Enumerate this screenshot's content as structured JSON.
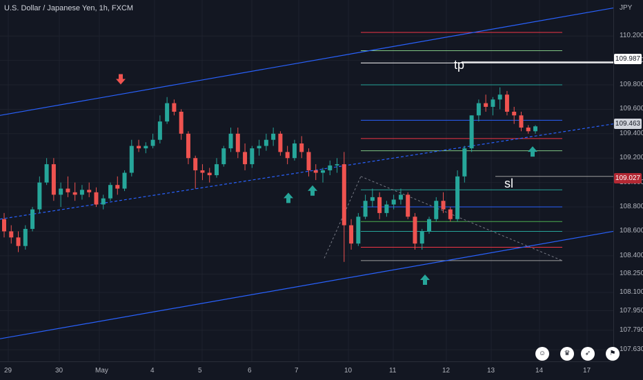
{
  "header": {
    "title": "U.S. Dollar / Japanese Yen, 1h, FXCM",
    "unit": "JPY"
  },
  "annotations": {
    "tp": "tp",
    "sl": "sl"
  },
  "price_labels": {
    "tp": {
      "value": "109.987",
      "bg": "#ffffff",
      "fg": "#131722"
    },
    "current": {
      "value": "109.463",
      "bg": "#d1d4dc",
      "fg": "#131722"
    },
    "sl": {
      "value": "109.027",
      "bg": "#b22833",
      "fg": "#ffffff"
    }
  },
  "colors": {
    "bull": "#26a69a",
    "bear": "#ef5350",
    "channel": "#2962ff",
    "background": "#131722"
  },
  "icons": [
    "smiley-icon",
    "trophy-icon",
    "rocket-icon",
    "flag-icon"
  ],
  "chart_data": {
    "type": "candlestick",
    "symbol": "USD/JPY",
    "timeframe": "1h",
    "x_ticks": [
      "29",
      "30",
      "May",
      "4",
      "5",
      "6",
      "7",
      "10",
      "11",
      "12",
      "13",
      "14",
      "17"
    ],
    "y_ticks": [
      "110.200",
      "110.000",
      "109.800",
      "109.600",
      "109.400",
      "109.200",
      "109.000",
      "108.800",
      "108.600",
      "108.400",
      "108.250",
      "108.100",
      "107.950",
      "107.790",
      "107.630"
    ],
    "ylim": [
      107.58,
      110.45
    ],
    "candles": [
      [
        108.7,
        108.75,
        108.55,
        108.6
      ],
      [
        108.6,
        108.65,
        108.5,
        108.55
      ],
      [
        108.55,
        108.6,
        108.43,
        108.48
      ],
      [
        108.48,
        108.65,
        108.45,
        108.62
      ],
      [
        108.62,
        108.8,
        108.6,
        108.78
      ],
      [
        108.78,
        109.05,
        108.75,
        109.0
      ],
      [
        109.0,
        109.2,
        108.98,
        109.15
      ],
      [
        109.15,
        109.2,
        108.85,
        108.9
      ],
      [
        108.9,
        109.0,
        108.8,
        108.95
      ],
      [
        108.95,
        109.05,
        108.88,
        108.92
      ],
      [
        108.92,
        109.0,
        108.85,
        108.9
      ],
      [
        108.9,
        108.98,
        108.86,
        108.94
      ],
      [
        108.94,
        109.0,
        108.88,
        108.92
      ],
      [
        108.92,
        108.96,
        108.8,
        108.82
      ],
      [
        108.82,
        108.9,
        108.78,
        108.87
      ],
      [
        108.87,
        109.0,
        108.85,
        108.98
      ],
      [
        108.98,
        109.05,
        108.9,
        108.95
      ],
      [
        108.95,
        109.1,
        108.93,
        109.08
      ],
      [
        109.08,
        109.35,
        109.05,
        109.3
      ],
      [
        109.3,
        109.35,
        109.25,
        109.28
      ],
      [
        109.28,
        109.33,
        109.24,
        109.3
      ],
      [
        109.3,
        109.4,
        109.28,
        109.35
      ],
      [
        109.35,
        109.55,
        109.32,
        109.5
      ],
      [
        109.5,
        109.7,
        109.48,
        109.65
      ],
      [
        109.65,
        109.68,
        109.55,
        109.58
      ],
      [
        109.58,
        109.6,
        109.35,
        109.4
      ],
      [
        109.4,
        109.42,
        109.15,
        109.2
      ],
      [
        109.2,
        109.22,
        108.95,
        109.1
      ],
      [
        109.1,
        109.15,
        109.02,
        109.08
      ],
      [
        109.08,
        109.12,
        109.0,
        109.06
      ],
      [
        109.06,
        109.2,
        109.04,
        109.15
      ],
      [
        109.15,
        109.3,
        109.13,
        109.28
      ],
      [
        109.28,
        109.45,
        109.25,
        109.4
      ],
      [
        109.4,
        109.45,
        109.2,
        109.25
      ],
      [
        109.25,
        109.32,
        109.1,
        109.15
      ],
      [
        109.15,
        109.3,
        109.12,
        109.28
      ],
      [
        109.28,
        109.35,
        109.22,
        109.3
      ],
      [
        109.3,
        109.4,
        109.26,
        109.35
      ],
      [
        109.35,
        109.45,
        109.3,
        109.4
      ],
      [
        109.4,
        109.42,
        109.22,
        109.25
      ],
      [
        109.25,
        109.3,
        109.15,
        109.2
      ],
      [
        109.2,
        109.35,
        109.18,
        109.32
      ],
      [
        109.32,
        109.38,
        109.2,
        109.25
      ],
      [
        109.25,
        109.28,
        109.05,
        109.1
      ],
      [
        109.1,
        109.15,
        109.02,
        109.08
      ],
      [
        109.08,
        109.12,
        109.0,
        109.1
      ],
      [
        109.1,
        109.18,
        109.06,
        109.14
      ],
      [
        109.14,
        109.2,
        109.08,
        109.15
      ],
      [
        109.15,
        109.25,
        108.35,
        108.65
      ],
      [
        108.65,
        108.7,
        108.45,
        108.5
      ],
      [
        108.5,
        108.75,
        108.48,
        108.72
      ],
      [
        108.72,
        108.9,
        108.7,
        108.85
      ],
      [
        108.85,
        108.95,
        108.8,
        108.88
      ],
      [
        108.88,
        108.92,
        108.7,
        108.75
      ],
      [
        108.75,
        108.85,
        108.72,
        108.82
      ],
      [
        108.82,
        108.9,
        108.78,
        108.86
      ],
      [
        108.86,
        108.95,
        108.82,
        108.9
      ],
      [
        108.9,
        108.92,
        108.7,
        108.72
      ],
      [
        108.72,
        108.75,
        108.45,
        108.5
      ],
      [
        108.5,
        108.62,
        108.45,
        108.6
      ],
      [
        108.6,
        108.72,
        108.58,
        108.7
      ],
      [
        108.7,
        108.88,
        108.68,
        108.85
      ],
      [
        108.85,
        108.92,
        108.75,
        108.78
      ],
      [
        108.78,
        108.8,
        108.68,
        108.7
      ],
      [
        108.7,
        109.1,
        108.68,
        109.05
      ],
      [
        109.05,
        109.3,
        109.0,
        109.28
      ],
      [
        109.28,
        109.55,
        109.25,
        109.55
      ],
      [
        109.55,
        109.68,
        109.5,
        109.65
      ],
      [
        109.65,
        109.72,
        109.58,
        109.62
      ],
      [
        109.62,
        109.7,
        109.55,
        109.68
      ],
      [
        109.68,
        109.78,
        109.6,
        109.72
      ],
      [
        109.72,
        109.75,
        109.55,
        109.58
      ],
      [
        109.58,
        109.62,
        109.48,
        109.55
      ],
      [
        109.55,
        109.58,
        109.42,
        109.45
      ],
      [
        109.45,
        109.47,
        109.4,
        109.42
      ],
      [
        109.42,
        109.47,
        109.4,
        109.46
      ]
    ],
    "ascending_channel": {
      "upper": [
        [
          "Apr 28",
          109.55
        ],
        [
          "May 17",
          110.43
        ]
      ],
      "middle_dashed": [
        [
          "Apr 28",
          108.7
        ],
        [
          "May 17",
          109.48
        ]
      ],
      "lower": [
        [
          "Apr 28",
          107.72
        ],
        [
          "May 17",
          108.6
        ]
      ]
    },
    "horizontal_levels": [
      110.23,
      110.08,
      109.98,
      109.8,
      109.51,
      109.36,
      109.26,
      109.05,
      108.94,
      108.8,
      108.68,
      108.6,
      108.47,
      108.36
    ],
    "markers": [
      {
        "type": "down-arrow",
        "color": "bear",
        "x": "May 1",
        "y": 109.82
      },
      {
        "type": "up-arrow",
        "color": "bull",
        "x": "May 6",
        "y": 108.9
      },
      {
        "type": "up-arrow",
        "color": "bull",
        "x": "May 7",
        "y": 108.96
      },
      {
        "type": "up-arrow",
        "color": "bull",
        "x": "May 11",
        "y": 108.23
      },
      {
        "type": "up-arrow",
        "color": "bull",
        "x": "May 13",
        "y": 109.28
      }
    ]
  }
}
